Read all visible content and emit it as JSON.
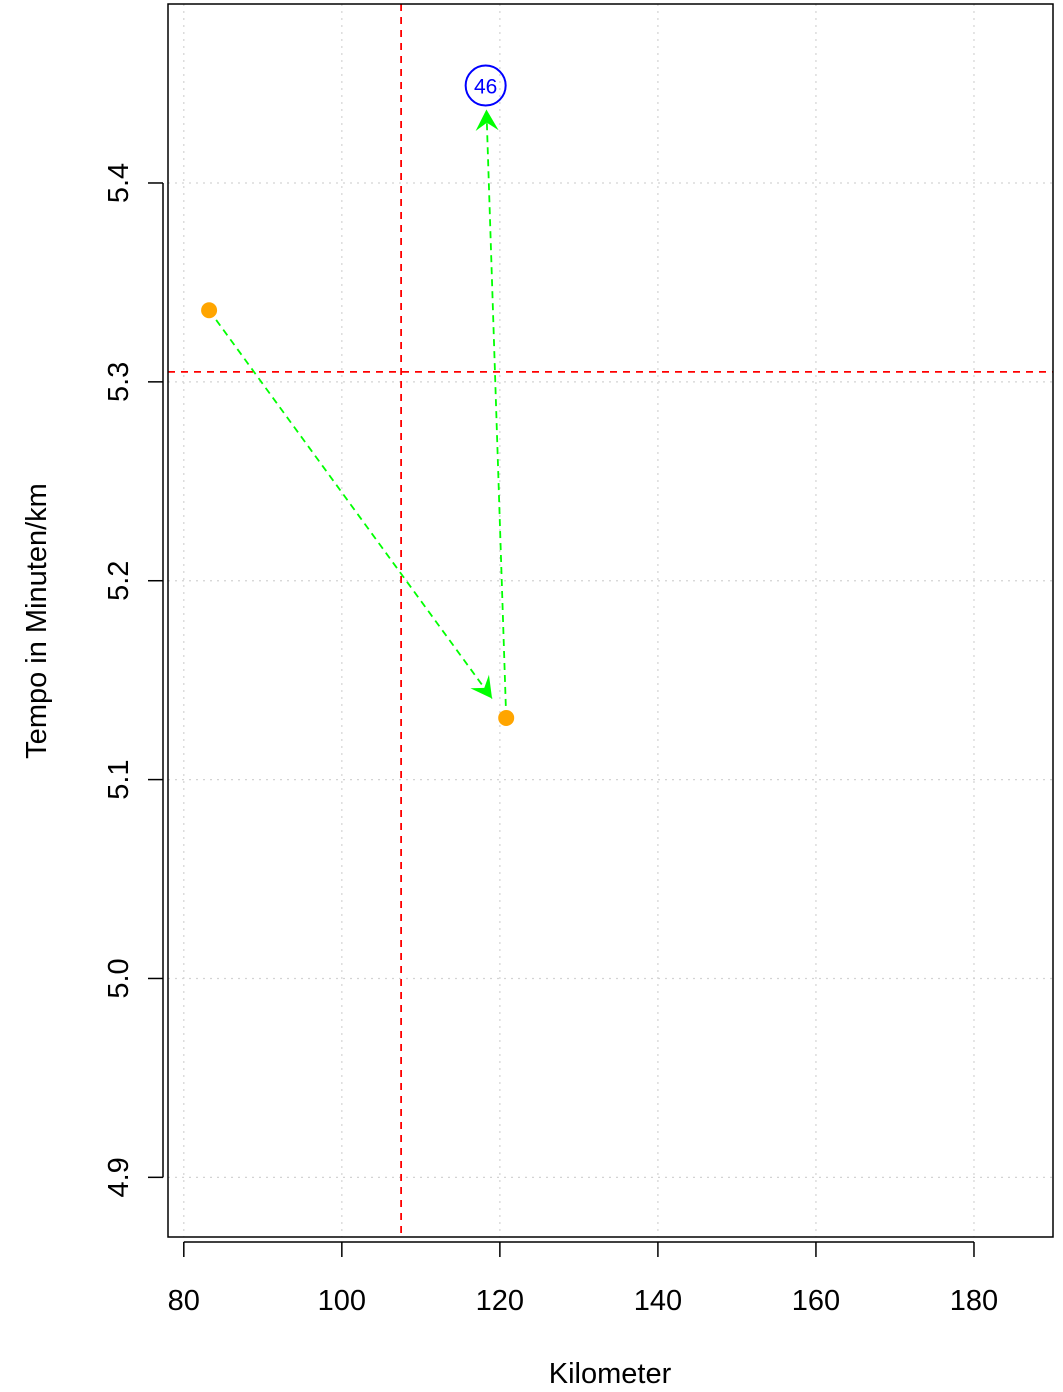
{
  "chart_data": {
    "type": "scatter",
    "title": "",
    "xlabel": "Kilometer",
    "ylabel": "Tempo in Minuten/km",
    "xlim": [
      78,
      190
    ],
    "ylim": [
      4.87,
      5.49
    ],
    "x_ticks": [
      80,
      100,
      120,
      140,
      160,
      180
    ],
    "y_ticks": [
      4.9,
      5.0,
      5.1,
      5.2,
      5.3,
      5.4
    ],
    "grid": true,
    "points": [
      {
        "x": 83.2,
        "y": 5.336,
        "color": "#FFA500"
      },
      {
        "x": 120.8,
        "y": 5.131,
        "color": "#FFA500"
      }
    ],
    "path": [
      {
        "x": 83.2,
        "y": 5.336
      },
      {
        "x": 120.8,
        "y": 5.131
      },
      {
        "x": 118.2,
        "y": 5.449
      }
    ],
    "path_color": "#00FF00",
    "reference_lines": {
      "vertical_x": 107.5,
      "horizontal_y": 5.305,
      "color": "#FF0000"
    },
    "annotation": {
      "x": 118.2,
      "y": 5.449,
      "text": "46",
      "color": "#0000FF"
    }
  }
}
